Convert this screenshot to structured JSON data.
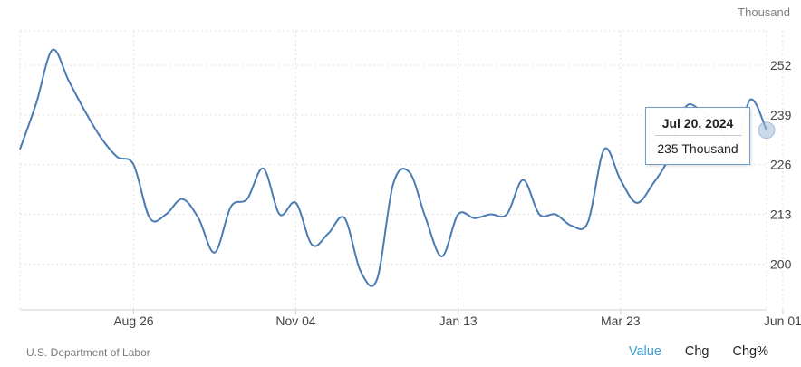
{
  "unit_label": "Thousand",
  "source": "U.S. Department of Labor",
  "tabs": [
    {
      "label": "Value",
      "active": true
    },
    {
      "label": "Chg",
      "active": false
    },
    {
      "label": "Chg%",
      "active": false
    }
  ],
  "tooltip": {
    "date": "Jul 20, 2024",
    "value": "235 Thousand"
  },
  "colors": {
    "line": "#4a7bb3",
    "grid": "#e0e0e0",
    "active_tab": "#3a9fd6"
  },
  "chart_data": {
    "type": "line",
    "title": "",
    "xlabel": "",
    "ylabel": "",
    "ylim": [
      188,
      261
    ],
    "y_ticks": [
      200,
      213,
      226,
      239,
      252
    ],
    "x_ticks": [
      {
        "label": "Aug 26",
        "index": 7
      },
      {
        "label": "Nov 04",
        "index": 17
      },
      {
        "label": "Jan 13",
        "index": 27
      },
      {
        "label": "Mar 23",
        "index": 37
      },
      {
        "label": "Jun 01",
        "index": 47
      }
    ],
    "series": [
      {
        "name": "",
        "values": [
          230,
          242,
          256,
          248,
          240,
          233,
          228,
          226,
          212,
          213,
          217,
          212,
          203,
          215,
          217,
          225,
          213,
          216,
          205,
          208,
          212,
          198,
          196,
          221,
          224,
          212,
          202,
          213,
          212,
          213,
          213,
          222,
          213,
          213,
          210,
          211,
          230,
          222,
          216,
          221,
          228,
          241,
          240,
          237,
          229,
          243,
          235
        ]
      }
    ]
  }
}
